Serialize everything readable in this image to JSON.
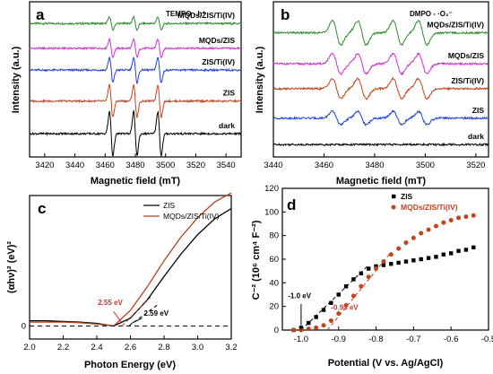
{
  "chart_data": [
    {
      "panel": "a",
      "type": "line",
      "title": "TEMPO - h⁺",
      "xlabel": "Magnetic field (mT)",
      "ylabel": "Intensity (a.u.)",
      "xlim": [
        3410,
        3550
      ],
      "x_ticks": [
        3420,
        3440,
        3460,
        3480,
        3500,
        3520,
        3540
      ],
      "series": [
        {
          "name": "MQDs/ZIS/Ti(IV)",
          "color": "#2e8b2e",
          "baseline": 0.86,
          "amplitude": 0.045
        },
        {
          "name": "MQDs/ZIS",
          "color": "#cc33cc",
          "baseline": 0.7,
          "amplitude": 0.06
        },
        {
          "name": "ZIS/Ti(IV)",
          "color": "#1f3fd1",
          "baseline": 0.56,
          "amplitude": 0.085
        },
        {
          "name": "ZIS",
          "color": "#c1441c",
          "baseline": 0.36,
          "amplitude": 0.11
        },
        {
          "name": "dark",
          "color": "#000000",
          "baseline": 0.15,
          "amplitude": 0.15
        }
      ],
      "peak_centers": [
        3464,
        3480,
        3496
      ]
    },
    {
      "panel": "b",
      "type": "line",
      "title": "DMPO - ·O₂⁻",
      "xlabel": "Magnetic field (mT)",
      "ylabel": "Intensity (a.u.)",
      "xlim": [
        3440,
        3525
      ],
      "x_ticks": [
        3440,
        3460,
        3480,
        3500,
        3520
      ],
      "series": [
        {
          "name": "MQDs/ZIS/Ti(IV)",
          "color": "#2e8b2e",
          "baseline": 0.8,
          "amplitude": 0.09
        },
        {
          "name": "MQDs/ZIS",
          "color": "#cc33cc",
          "baseline": 0.6,
          "amplitude": 0.075
        },
        {
          "name": "ZIS/Ti(IV)",
          "color": "#c1441c",
          "baseline": 0.44,
          "amplitude": 0.075
        },
        {
          "name": "ZIS",
          "color": "#1f3fd1",
          "baseline": 0.25,
          "amplitude": 0.05
        },
        {
          "name": "dark",
          "color": "#000000",
          "baseline": 0.08,
          "amplitude": 0.0
        }
      ],
      "peak_centers": [
        3465,
        3475,
        3489,
        3499
      ]
    },
    {
      "panel": "c",
      "type": "line",
      "xlabel": "Photon Energy (eV)",
      "ylabel": "(αhν)² (eV)²",
      "xlim": [
        2.0,
        3.2
      ],
      "ylim": [
        -0.1,
        1.0
      ],
      "x_ticks": [
        "2.0",
        "2.2",
        "2.4",
        "2.6",
        "2.8",
        "3.0",
        "3.2"
      ],
      "y_ticks": [
        "0"
      ],
      "series": [
        {
          "name": "ZIS",
          "color": "#000000",
          "x": [
            2.0,
            2.1,
            2.2,
            2.3,
            2.4,
            2.5,
            2.6,
            2.7,
            2.8,
            2.9,
            3.0,
            3.1,
            3.2
          ],
          "y": [
            0.04,
            0.04,
            0.035,
            0.03,
            0.02,
            0.0,
            0.06,
            0.2,
            0.38,
            0.55,
            0.7,
            0.82,
            0.9
          ]
        },
        {
          "name": "MQDs/ZIS/Ti(IV)",
          "color": "#b5401c",
          "x": [
            2.0,
            2.1,
            2.2,
            2.3,
            2.4,
            2.5,
            2.6,
            2.7,
            2.8,
            2.9,
            3.0,
            3.1,
            3.2
          ],
          "y": [
            0.03,
            0.03,
            0.03,
            0.025,
            0.015,
            0.0,
            0.12,
            0.3,
            0.5,
            0.68,
            0.83,
            0.95,
            1.02
          ]
        }
      ],
      "annotations": [
        {
          "text": "2.55 eV",
          "x": 2.55,
          "color": "#c0392b"
        },
        {
          "text": "2.59 eV",
          "x": 2.59,
          "color": "#000000"
        }
      ]
    },
    {
      "panel": "d",
      "type": "scatter",
      "xlabel": "Potential (V vs. Ag/AgCl)",
      "ylabel": "C⁻² (10⁶ cm⁴ F⁻²)",
      "xlim": [
        -1.05,
        -0.5
      ],
      "ylim": [
        0,
        120
      ],
      "x_ticks": [
        "-1.0",
        "-0.9",
        "-0.8",
        "-0.7",
        "-0.6",
        "-0.5"
      ],
      "y_ticks": [
        "0",
        "20",
        "40",
        "60",
        "80",
        "100",
        "120"
      ],
      "series": [
        {
          "name": "ZIS",
          "color": "#000000",
          "marker": "square",
          "x": [
            -1.02,
            -1.0,
            -0.98,
            -0.96,
            -0.94,
            -0.92,
            -0.9,
            -0.88,
            -0.86,
            -0.84,
            -0.82,
            -0.8,
            -0.78,
            -0.76,
            -0.74,
            -0.72,
            -0.7,
            -0.68,
            -0.66,
            -0.64,
            -0.62,
            -0.6,
            -0.58,
            -0.56,
            -0.54
          ],
          "y": [
            0,
            2,
            6,
            11,
            17,
            23,
            30,
            37,
            43,
            48,
            52,
            54,
            55,
            56,
            57,
            58,
            59,
            60,
            61,
            62,
            64,
            65,
            67,
            68,
            70
          ]
        },
        {
          "name": "MQDs/ZIS/Ti(IV)",
          "color": "#c1441c",
          "marker": "circle",
          "x": [
            -1.02,
            -1.0,
            -0.98,
            -0.96,
            -0.94,
            -0.92,
            -0.9,
            -0.88,
            -0.86,
            -0.84,
            -0.82,
            -0.8,
            -0.78,
            -0.76,
            -0.74,
            -0.72,
            -0.7,
            -0.68,
            -0.66,
            -0.64,
            -0.62,
            -0.6,
            -0.58,
            -0.56,
            -0.54
          ],
          "y": [
            0,
            0,
            1,
            2,
            4,
            8,
            14,
            21,
            29,
            37,
            45,
            52,
            58,
            64,
            69,
            74,
            78,
            82,
            85,
            88,
            91,
            93,
            95,
            96,
            97
          ]
        }
      ],
      "annotations": [
        {
          "text": "-1.0 eV",
          "x": -1.0,
          "color": "#000000"
        },
        {
          "text": "-0.93 eV",
          "x": -0.93,
          "color": "#c0392b"
        }
      ]
    }
  ]
}
